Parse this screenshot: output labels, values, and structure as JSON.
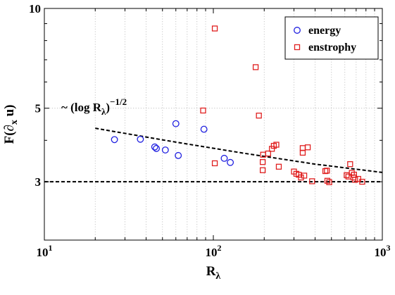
{
  "chart_data": {
    "type": "scatter",
    "title": "",
    "xscale": "log",
    "yscale": "log",
    "xlim": [
      10,
      1000
    ],
    "ylim": [
      2,
      10
    ],
    "grid": true,
    "legend_position": "top-right",
    "xlabel": {
      "main": "R",
      "sub": "λ"
    },
    "ylabel": {
      "pre": "F(∂",
      "sub": "x",
      "post": " u)"
    },
    "x_ticks": [
      {
        "value": 10,
        "base": "10",
        "exp": "1"
      },
      {
        "value": 100,
        "base": "10",
        "exp": "2"
      },
      {
        "value": 1000,
        "base": "10",
        "exp": "3"
      }
    ],
    "y_ticks": [
      {
        "value": 3,
        "label": "3"
      },
      {
        "value": 5,
        "label": "5"
      },
      {
        "value": 10,
        "label": "10"
      }
    ],
    "series": [
      {
        "name": "energy",
        "marker": "circle",
        "color": "#2020e0",
        "points": [
          [
            26,
            4.02
          ],
          [
            37,
            4.03
          ],
          [
            45,
            3.82
          ],
          [
            46,
            3.78
          ],
          [
            52,
            3.74
          ],
          [
            60,
            4.49
          ],
          [
            62,
            3.6
          ],
          [
            88,
            4.32
          ],
          [
            116,
            3.53
          ],
          [
            126,
            3.43
          ]
        ]
      },
      {
        "name": "enstrophy",
        "marker": "square",
        "color": "#e02020",
        "points": [
          [
            87,
            4.92
          ],
          [
            102,
            8.7
          ],
          [
            102,
            3.41
          ],
          [
            178,
            6.65
          ],
          [
            186,
            4.75
          ],
          [
            196,
            3.25
          ],
          [
            196,
            3.44
          ],
          [
            197,
            3.62
          ],
          [
            211,
            3.65
          ],
          [
            222,
            3.77
          ],
          [
            228,
            3.85
          ],
          [
            236,
            3.88
          ],
          [
            244,
            3.33
          ],
          [
            300,
            3.22
          ],
          [
            310,
            3.17
          ],
          [
            320,
            3.15
          ],
          [
            330,
            3.09
          ],
          [
            338,
            3.79
          ],
          [
            338,
            3.67
          ],
          [
            345,
            3.13
          ],
          [
            362,
            3.81
          ],
          [
            384,
            3.01
          ],
          [
            460,
            3.23
          ],
          [
            470,
            3.24
          ],
          [
            473,
            3.02
          ],
          [
            485,
            2.99
          ],
          [
            615,
            3.14
          ],
          [
            630,
            3.11
          ],
          [
            645,
            3.39
          ],
          [
            660,
            3.19
          ],
          [
            675,
            3.09
          ],
          [
            680,
            3.15
          ],
          [
            690,
            3.04
          ],
          [
            720,
            3.06
          ],
          [
            760,
            3.0
          ]
        ]
      }
    ],
    "reference_lines": [
      {
        "style": "dashed",
        "color": "#000000",
        "type": "power_law",
        "label": {
          "pre": "~ (log R",
          "sub": "λ",
          "post": ")",
          "sup": "−1/2"
        },
        "x_range": [
          20,
          1000
        ],
        "points": [
          [
            20,
            4.35
          ],
          [
            60,
            3.95
          ],
          [
            150,
            3.66
          ],
          [
            400,
            3.39
          ],
          [
            1000,
            3.2
          ]
        ]
      },
      {
        "style": "dashed",
        "color": "#000000",
        "type": "horizontal",
        "y": 3,
        "x_range": [
          10,
          1000
        ]
      }
    ]
  }
}
